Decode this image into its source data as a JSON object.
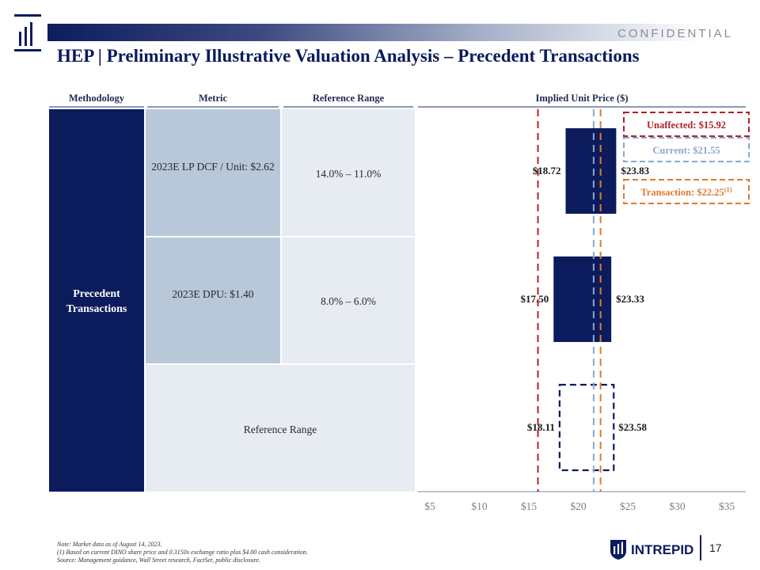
{
  "header": {
    "confidential": "CONFIDENTIAL",
    "title": "HEP | Preliminary Illustrative Valuation Analysis – Precedent Transactions"
  },
  "columns": {
    "methodology": "Methodology",
    "metric": "Metric",
    "reference_range": "Reference Range",
    "implied": "Implied Unit Price ($)"
  },
  "table": {
    "methodology": "Precedent Transactions",
    "rows": [
      {
        "metric": "2023E LP DCF / Unit: $2.62",
        "range": "14.0% – 11.0%"
      },
      {
        "metric": "2023E DPU: $1.40",
        "range": "8.0% – 6.0%"
      },
      {
        "merged_label": "Reference Range"
      }
    ]
  },
  "chart_data": {
    "type": "bar",
    "orientation": "horizontal-floating",
    "xlabel": "Implied Unit Price ($)",
    "xlim": [
      5,
      35
    ],
    "ticks": [
      "$5",
      "$10",
      "$15",
      "$20",
      "$25",
      "$30",
      "$35"
    ],
    "tick_values": [
      5,
      10,
      15,
      20,
      25,
      30,
      35
    ],
    "bars": [
      {
        "row": "2023E LP DCF / Unit: $2.62",
        "low": 18.72,
        "high": 23.83,
        "low_label": "$18.72",
        "high_label": "$23.83",
        "style": "solid"
      },
      {
        "row": "2023E DPU: $1.40",
        "low": 17.5,
        "high": 23.33,
        "low_label": "$17.50",
        "high_label": "$23.33",
        "style": "solid"
      },
      {
        "row": "Reference Range",
        "low": 18.11,
        "high": 23.58,
        "low_label": "$18.11",
        "high_label": "$23.58",
        "style": "dashed"
      }
    ],
    "reference_lines": [
      {
        "label": "Unaffected: $15.92",
        "value": 15.92,
        "color": "#b22228"
      },
      {
        "label": "Current: $21.55",
        "value": 21.55,
        "color": "#8aa8cf"
      },
      {
        "label": "Transaction: $22.25",
        "footnote": "(1)",
        "value": 22.25,
        "color": "#e07a2d"
      }
    ],
    "colors": {
      "bar": "#0b1b5c",
      "axis": "#a6b0c4"
    }
  },
  "footer": {
    "note": "Note: Market data as of August 14, 2023.",
    "footnote_1": "(1)      Based on current DINO share price and 0.3150x exchange ratio plus $4.00 cash consideration.",
    "source": "Source: Management guidance, Wall Street research, FactSet, public disclosure.",
    "brand": "INTREPID",
    "page": "17"
  }
}
